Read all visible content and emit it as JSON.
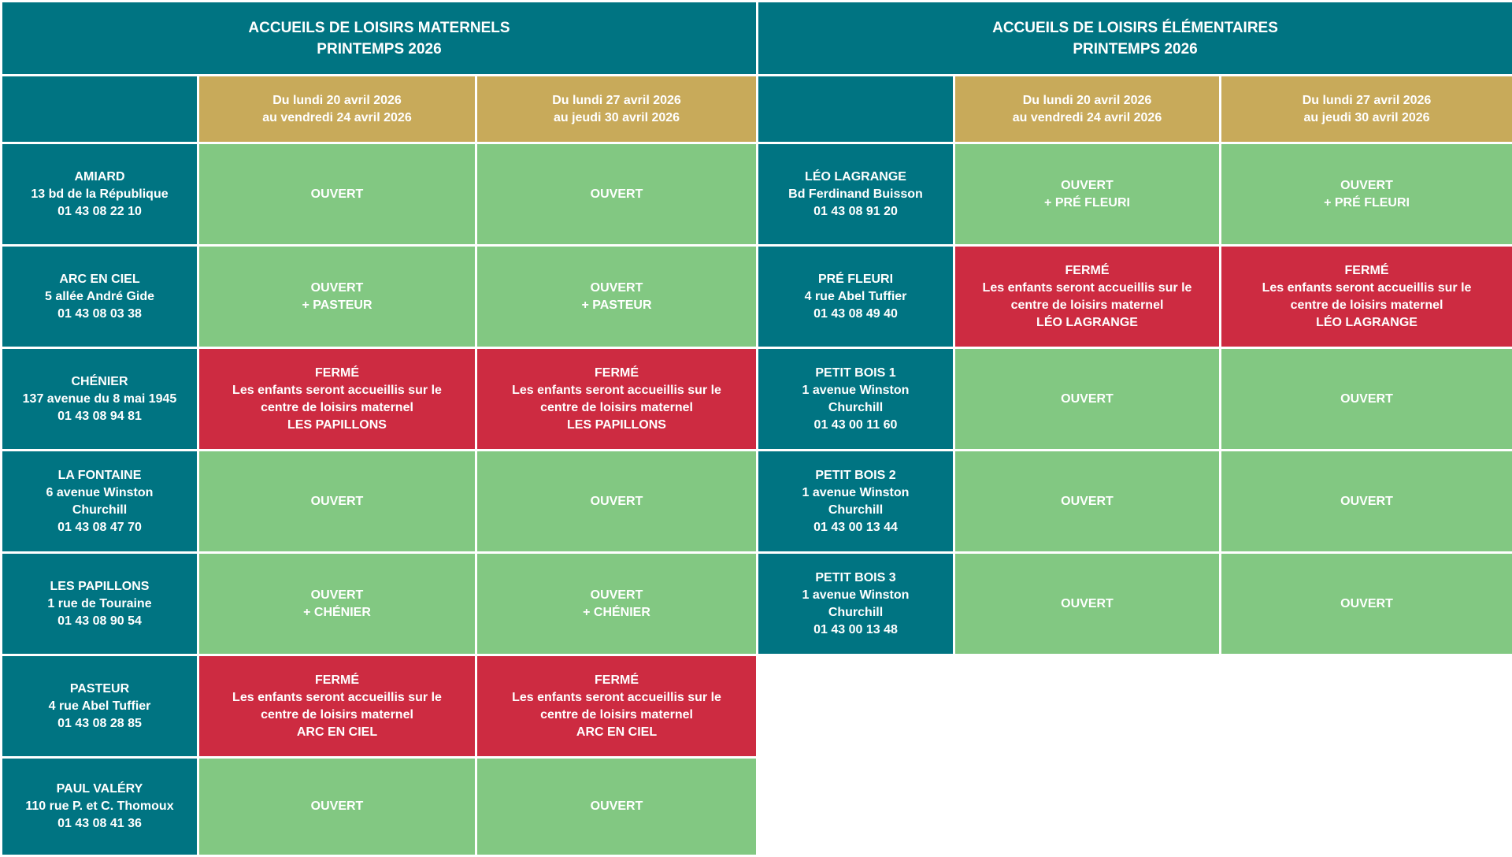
{
  "colors": {
    "header_teal": "#007482",
    "period_gold": "#c8aa5a",
    "open_green": "#82c882",
    "closed_red": "#cd2b41"
  },
  "maternels": {
    "title": [
      "ACCUEILS DE LOISIRS MATERNELS",
      "PRINTEMPS 2026"
    ],
    "periods": [
      [
        "Du lundi 20 avril 2026",
        "au vendredi 24 avril 2026"
      ],
      [
        "Du lundi 27 avril 2026",
        "au jeudi 30 avril 2026"
      ]
    ],
    "rows": [
      {
        "site": [
          "AMIARD",
          "13 bd de la République",
          "01 43 08 22 10"
        ],
        "cells": [
          {
            "status": "open",
            "lines": [
              "OUVERT"
            ]
          },
          {
            "status": "open",
            "lines": [
              "OUVERT"
            ]
          }
        ]
      },
      {
        "site": [
          "ARC EN CIEL",
          "5 allée André Gide",
          "01 43 08 03 38"
        ],
        "cells": [
          {
            "status": "open",
            "lines": [
              "OUVERT",
              "+ PASTEUR"
            ]
          },
          {
            "status": "open",
            "lines": [
              "OUVERT",
              "+ PASTEUR"
            ]
          }
        ]
      },
      {
        "site": [
          "CHÉNIER",
          "137 avenue du 8 mai 1945",
          "01 43 08 94 81"
        ],
        "cells": [
          {
            "status": "closed",
            "lines": [
              "FERMÉ",
              "Les enfants seront accueillis sur le",
              "centre de loisirs maternel",
              "LES PAPILLONS"
            ]
          },
          {
            "status": "closed",
            "lines": [
              "FERMÉ",
              "Les enfants seront accueillis sur le",
              "centre de loisirs maternel",
              "LES PAPILLONS"
            ]
          }
        ]
      },
      {
        "site": [
          "LA FONTAINE",
          "6 avenue Winston",
          "Churchill",
          "01 43 08 47 70"
        ],
        "cells": [
          {
            "status": "open",
            "lines": [
              "OUVERT"
            ]
          },
          {
            "status": "open",
            "lines": [
              "OUVERT"
            ]
          }
        ]
      },
      {
        "site": [
          "LES PAPILLONS",
          "1 rue de Touraine",
          "01 43 08 90 54"
        ],
        "cells": [
          {
            "status": "open",
            "lines": [
              "OUVERT",
              "+ CHÉNIER"
            ]
          },
          {
            "status": "open",
            "lines": [
              "OUVERT",
              "+ CHÉNIER"
            ]
          }
        ]
      },
      {
        "site": [
          "PASTEUR",
          "4 rue Abel Tuffier",
          "01 43 08 28 85"
        ],
        "cells": [
          {
            "status": "closed",
            "lines": [
              "FERMÉ",
              "Les enfants seront accueillis sur le",
              "centre de loisirs maternel",
              "ARC EN CIEL"
            ]
          },
          {
            "status": "closed",
            "lines": [
              "FERMÉ",
              "Les enfants seront accueillis sur le",
              "centre de loisirs maternel",
              "ARC EN CIEL"
            ]
          }
        ]
      },
      {
        "site": [
          "PAUL VALÉRY",
          "110 rue P. et C. Thomoux",
          "01 43 08 41 36"
        ],
        "cells": [
          {
            "status": "open",
            "lines": [
              "OUVERT"
            ]
          },
          {
            "status": "open",
            "lines": [
              "OUVERT"
            ]
          }
        ]
      }
    ]
  },
  "elementaires": {
    "title": [
      "ACCUEILS DE LOISIRS ÉLÉMENTAIRES",
      "PRINTEMPS 2026"
    ],
    "periods": [
      [
        "Du lundi 20 avril 2026",
        "au vendredi 24 avril 2026"
      ],
      [
        "Du lundi 27 avril 2026",
        "au jeudi 30 avril 2026"
      ]
    ],
    "rows": [
      {
        "site": [
          "LÉO LAGRANGE",
          "Bd Ferdinand Buisson",
          "01 43 08 91 20"
        ],
        "cells": [
          {
            "status": "open",
            "lines": [
              "OUVERT",
              "+ PRÉ FLEURI"
            ]
          },
          {
            "status": "open",
            "lines": [
              "OUVERT",
              "+ PRÉ FLEURI"
            ]
          }
        ]
      },
      {
        "site": [
          "PRÉ FLEURI",
          "4 rue Abel Tuffier",
          "01 43 08 49 40"
        ],
        "cells": [
          {
            "status": "closed",
            "lines": [
              "FERMÉ",
              "Les enfants seront accueillis sur le",
              "centre de loisirs maternel",
              "LÉO LAGRANGE"
            ]
          },
          {
            "status": "closed",
            "lines": [
              "FERMÉ",
              "Les enfants seront accueillis sur le",
              "centre de loisirs maternel",
              "LÉO LAGRANGE"
            ]
          }
        ]
      },
      {
        "site": [
          "PETIT BOIS 1",
          "1 avenue Winston",
          "Churchill",
          "01 43 00 11 60"
        ],
        "cells": [
          {
            "status": "open",
            "lines": [
              "OUVERT"
            ]
          },
          {
            "status": "open",
            "lines": [
              "OUVERT"
            ]
          }
        ]
      },
      {
        "site": [
          "PETIT BOIS 2",
          "1 avenue Winston",
          "Churchill",
          "01 43 00 13 44"
        ],
        "cells": [
          {
            "status": "open",
            "lines": [
              "OUVERT"
            ]
          },
          {
            "status": "open",
            "lines": [
              "OUVERT"
            ]
          }
        ]
      },
      {
        "site": [
          "PETIT BOIS 3",
          "1 avenue Winston",
          "Churchill",
          "01 43 00 13 48"
        ],
        "cells": [
          {
            "status": "open",
            "lines": [
              "OUVERT"
            ]
          },
          {
            "status": "open",
            "lines": [
              "OUVERT"
            ]
          }
        ]
      }
    ]
  }
}
